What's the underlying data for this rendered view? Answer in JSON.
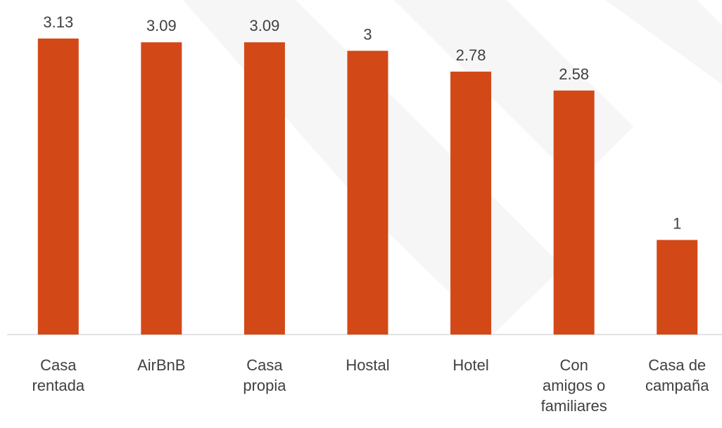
{
  "chart_data": {
    "type": "bar",
    "categories": [
      "Casa rentada",
      "AirBnB",
      "Casa propia",
      "Hostal",
      "Hotel",
      "Con amigos o familiares",
      "Casa de campaña"
    ],
    "values": [
      3.13,
      3.09,
      3.09,
      3,
      2.78,
      2.58,
      1
    ],
    "color": "#d34817",
    "ylim": [
      0,
      3.5
    ]
  }
}
